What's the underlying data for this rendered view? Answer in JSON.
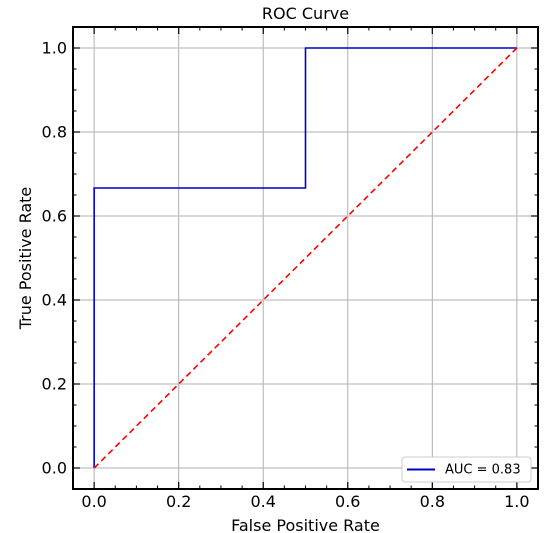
{
  "chart_data": {
    "type": "line",
    "title": "ROC Curve",
    "xlabel": "False Positive Rate",
    "ylabel": "True Positive Rate",
    "xlim": [
      -0.05,
      1.05
    ],
    "ylim": [
      -0.05,
      1.05
    ],
    "xticks": [
      "0.0",
      "0.2",
      "0.4",
      "0.6",
      "0.8",
      "1.0"
    ],
    "yticks": [
      "0.0",
      "0.2",
      "0.4",
      "0.6",
      "0.8",
      "1.0"
    ],
    "grid": true,
    "legend_position": "bottom-right",
    "series": [
      {
        "name": "AUC = 0.83",
        "color": "#0000cc",
        "style": "solid",
        "x": [
          0.0,
          0.0,
          0.5,
          0.5,
          1.0
        ],
        "y": [
          0.0,
          0.6667,
          0.6667,
          1.0,
          1.0
        ]
      },
      {
        "color": "#ff0000",
        "style": "dashed",
        "x": [
          0.0,
          1.0
        ],
        "y": [
          0.0,
          1.0
        ]
      }
    ]
  }
}
